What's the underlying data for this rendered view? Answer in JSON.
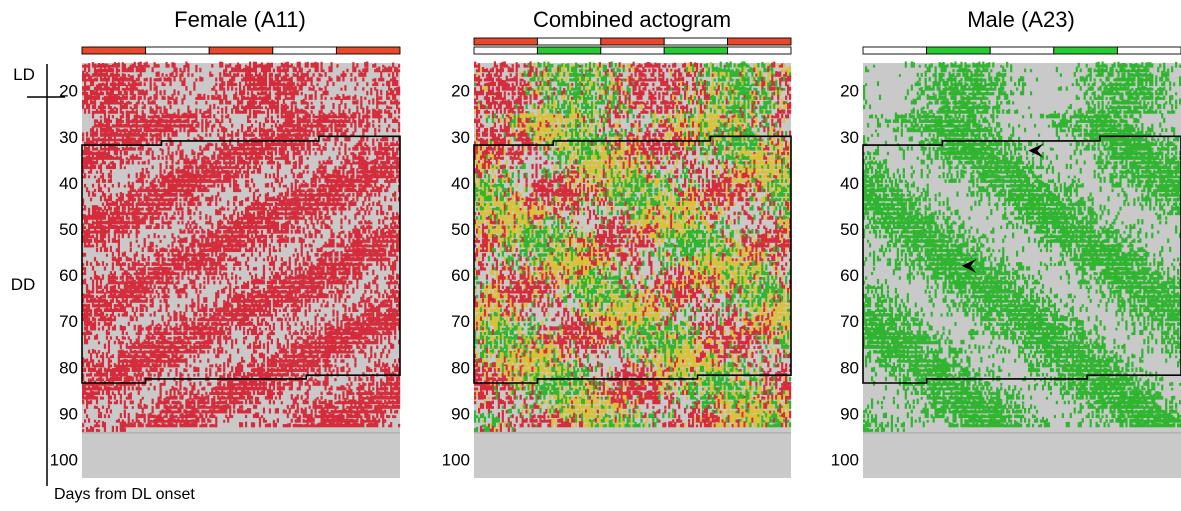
{
  "figure": {
    "y_unit_label": "Days from DL onset",
    "phase_labels": [
      "LD",
      "DD"
    ]
  },
  "colors": {
    "female": "#d52b3a",
    "male": "#2fb52f",
    "overlap": "#d9c23a",
    "background": "#c9c9c9",
    "light_bar_female": "#e8492a",
    "light_bar_male": "#27cc33",
    "outline": "#000000"
  },
  "chart_data": [
    {
      "type": "heatmap",
      "title": "Female (A11)",
      "series": [
        {
          "name": "Female (A11)",
          "color": "#d52b3a"
        }
      ],
      "ylabel": "Days from DL onset",
      "ylim": [
        14,
        104
      ],
      "yticks": [
        20,
        30,
        40,
        50,
        60,
        70,
        80,
        90,
        100
      ],
      "recorded_days": [
        14,
        93
      ],
      "plot": "double-plotted",
      "light_bars": [
        [
          "#e8492a",
          "#ffffff",
          "#e8492a",
          "#ffffff",
          "#e8492a"
        ]
      ],
      "dd_region_days": [
        32,
        84
      ],
      "free_run_period_trend": "short"
    },
    {
      "type": "heatmap",
      "title": "Combined actogram",
      "series": [
        {
          "name": "Female (A11)",
          "color": "#d52b3a"
        },
        {
          "name": "Male (A23)",
          "color": "#2fb52f"
        }
      ],
      "ylim": [
        14,
        104
      ],
      "yticks": [
        20,
        30,
        40,
        50,
        60,
        70,
        80,
        90,
        100
      ],
      "recorded_days": [
        14,
        93
      ],
      "plot": "double-plotted",
      "light_bars": [
        [
          "#e8492a",
          "#ffffff",
          "#e8492a",
          "#ffffff",
          "#e8492a"
        ],
        [
          "#ffffff",
          "#27cc33",
          "#ffffff",
          "#27cc33",
          "#ffffff"
        ]
      ],
      "dd_region_days": [
        32,
        84
      ]
    },
    {
      "type": "heatmap",
      "title": "Male (A23)",
      "series": [
        {
          "name": "Male (A23)",
          "color": "#2fb52f"
        }
      ],
      "ylim": [
        14,
        104
      ],
      "yticks": [
        20,
        30,
        40,
        50,
        60,
        70,
        80,
        90,
        100
      ],
      "recorded_days": [
        14,
        93
      ],
      "plot": "double-plotted",
      "light_bars": [
        [
          "#ffffff",
          "#27cc33",
          "#ffffff",
          "#27cc33",
          "#ffffff"
        ]
      ],
      "dd_region_days": [
        32,
        84
      ],
      "arrowhead_days": [
        33,
        58
      ]
    }
  ]
}
